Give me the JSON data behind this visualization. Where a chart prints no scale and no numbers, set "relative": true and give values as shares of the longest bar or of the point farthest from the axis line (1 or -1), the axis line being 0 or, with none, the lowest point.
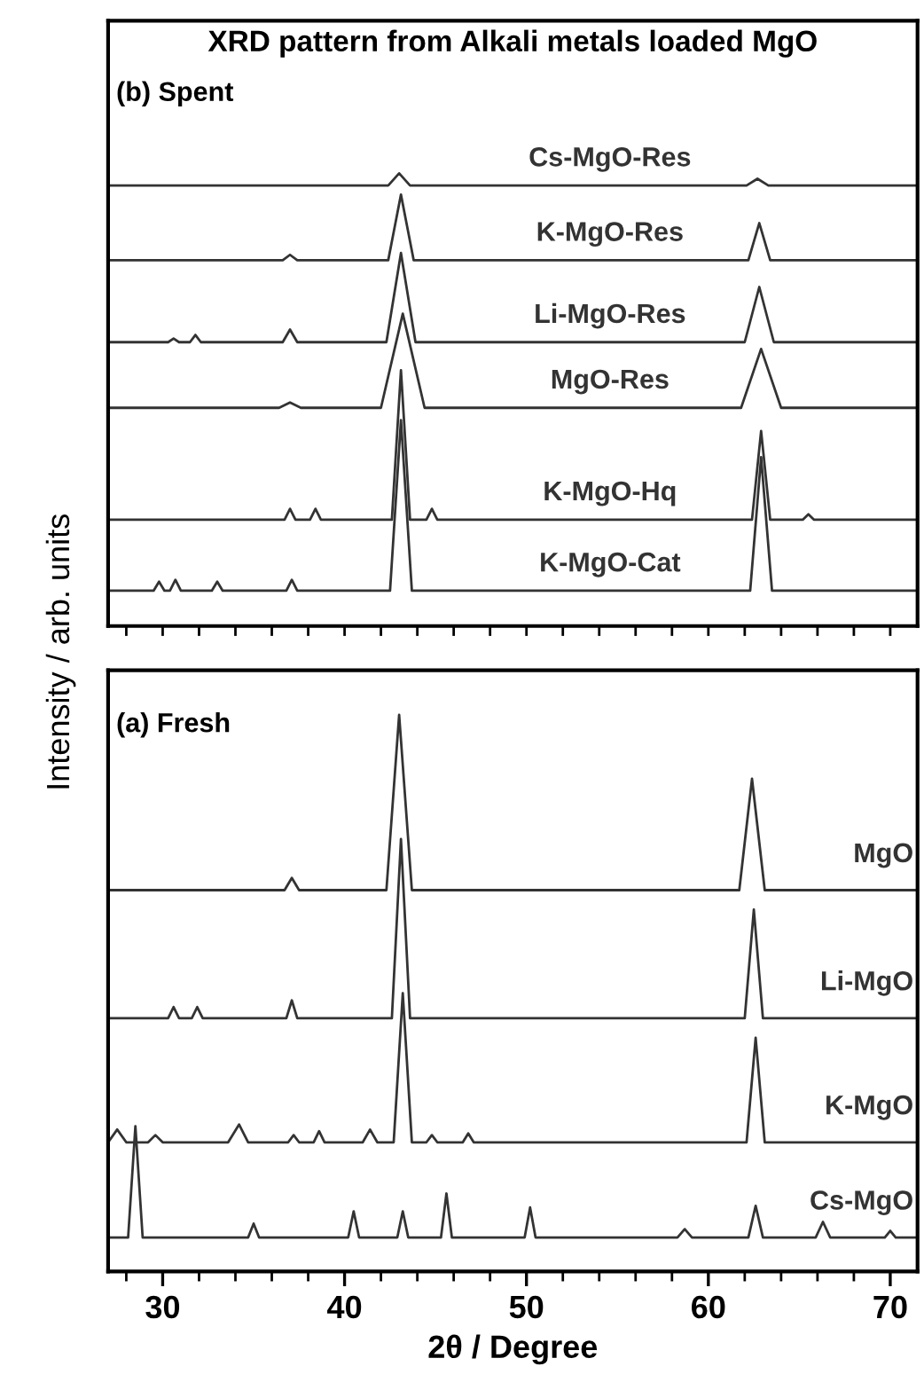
{
  "chart_data": [
    {
      "type": "line",
      "title": "XRD pattern from Alkali metals loaded MgO",
      "annotations": [
        "(b) Spent"
      ],
      "relative": true,
      "xlim": [
        27,
        71.5
      ],
      "xticks": [
        {
          "value": 28,
          "label": null
        },
        {
          "value": 30,
          "label": null
        },
        {
          "value": 32,
          "label": null
        },
        {
          "value": 34,
          "label": null
        },
        {
          "value": 36,
          "label": null
        },
        {
          "value": 38,
          "label": null
        },
        {
          "value": 40,
          "label": null
        },
        {
          "value": 42,
          "label": null
        },
        {
          "value": 44,
          "label": null
        },
        {
          "value": 46,
          "label": null
        },
        {
          "value": 48,
          "label": null
        },
        {
          "value": 50,
          "label": null
        },
        {
          "value": 52,
          "label": null
        },
        {
          "value": 54,
          "label": null
        },
        {
          "value": 56,
          "label": null
        },
        {
          "value": 58,
          "label": null
        },
        {
          "value": 60,
          "label": null
        },
        {
          "value": 62,
          "label": null
        },
        {
          "value": 64,
          "label": null
        },
        {
          "value": 66,
          "label": null
        },
        {
          "value": 68,
          "label": null
        },
        {
          "value": 70,
          "label": null
        }
      ],
      "tick_labels": false,
      "grid": false,
      "legend": false,
      "marker": "none",
      "line_style": "solid",
      "series": [
        {
          "name": "Cs-MgO-Res",
          "color": "#333333",
          "x": [
            27,
            42.4,
            43,
            43.6,
            62.1,
            62.7,
            63.3,
            71.5
          ],
          "values": [
            0.973,
            0.973,
            1.0,
            0.973,
            0.973,
            0.988,
            0.973,
            0.973
          ]
        },
        {
          "name": "K-MgO-Res",
          "color": "#333333",
          "x": [
            27,
            36.6,
            37,
            37.4,
            42.4,
            43.1,
            43.8,
            62.2,
            62.8,
            63.4,
            71.5
          ],
          "values": [
            0.808,
            0.808,
            0.82,
            0.808,
            0.808,
            0.953,
            0.808,
            0.808,
            0.89,
            0.808,
            0.808
          ]
        },
        {
          "name": "Li-MgO-Res",
          "color": "#333333",
          "x": [
            27,
            30.3,
            30.6,
            30.9,
            31.5,
            31.8,
            32.1,
            36.6,
            37,
            37.4,
            42.3,
            43.1,
            43.9,
            62.0,
            62.8,
            63.6,
            71.5
          ],
          "values": [
            0.627,
            0.627,
            0.635,
            0.627,
            0.627,
            0.643,
            0.627,
            0.627,
            0.655,
            0.627,
            0.627,
            0.824,
            0.627,
            0.627,
            0.749,
            0.627,
            0.627
          ]
        },
        {
          "name": "MgO-Res",
          "color": "#333333",
          "x": [
            27,
            36.4,
            37,
            37.6,
            42.0,
            43.2,
            44.4,
            61.8,
            62.9,
            64.0,
            71.5
          ],
          "values": [
            0.482,
            0.482,
            0.494,
            0.482,
            0.482,
            0.69,
            0.482,
            0.482,
            0.612,
            0.482,
            0.482
          ]
        },
        {
          "name": "K-MgO-Hq",
          "color": "#333333",
          "x": [
            27,
            36.7,
            37,
            37.3,
            38.1,
            38.4,
            38.7,
            42.6,
            43.1,
            43.6,
            44.5,
            44.8,
            45.1,
            62.4,
            62.9,
            63.4,
            65.2,
            65.5,
            65.8,
            71.5
          ],
          "values": [
            0.235,
            0.235,
            0.259,
            0.235,
            0.235,
            0.259,
            0.235,
            0.235,
            0.565,
            0.235,
            0.235,
            0.259,
            0.235,
            0.235,
            0.431,
            0.235,
            0.235,
            0.247,
            0.235,
            0.235
          ]
        },
        {
          "name": "K-MgO-Cat",
          "color": "#333333",
          "x": [
            27,
            29.5,
            29.8,
            30.1,
            30.4,
            30.7,
            31.0,
            32.7,
            33.0,
            33.3,
            36.8,
            37.1,
            37.4,
            42.5,
            43.1,
            43.7,
            62.3,
            62.9,
            63.5,
            71.5
          ],
          "values": [
            0.078,
            0.078,
            0.098,
            0.078,
            0.078,
            0.102,
            0.078,
            0.078,
            0.098,
            0.078,
            0.078,
            0.102,
            0.078,
            0.078,
            0.455,
            0.078,
            0.078,
            0.373,
            0.078,
            0.078
          ]
        }
      ]
    },
    {
      "type": "line",
      "annotations": [
        "(a) Fresh"
      ],
      "relative": true,
      "xlabel": "2θ / Degree",
      "ylabel": "Intensity / arb. units",
      "xlim": [
        27,
        71.5
      ],
      "xticks": [
        {
          "value": 28,
          "label": null
        },
        30,
        {
          "value": 32,
          "label": null
        },
        {
          "value": 34,
          "label": null
        },
        {
          "value": 36,
          "label": null
        },
        {
          "value": 38,
          "label": null
        },
        40,
        {
          "value": 42,
          "label": null
        },
        {
          "value": 44,
          "label": null
        },
        {
          "value": 46,
          "label": null
        },
        {
          "value": 48,
          "label": null
        },
        50,
        {
          "value": 52,
          "label": null
        },
        {
          "value": 54,
          "label": null
        },
        {
          "value": 56,
          "label": null
        },
        {
          "value": 58,
          "label": null
        },
        60,
        {
          "value": 62,
          "label": null
        },
        {
          "value": 64,
          "label": null
        },
        {
          "value": 66,
          "label": null
        },
        {
          "value": 68,
          "label": null
        },
        70
      ],
      "tick_labels": "x",
      "grid": false,
      "legend": false,
      "marker": "none",
      "line_style": "solid",
      "series": [
        {
          "name": "MgO",
          "color": "#333333",
          "x": [
            27,
            36.7,
            37.1,
            37.5,
            42.3,
            43.0,
            43.7,
            61.7,
            62.4,
            63.1,
            71.5
          ],
          "values": [
            0.685,
            0.685,
            0.707,
            0.685,
            0.685,
            1.0,
            0.685,
            0.685,
            0.885,
            0.685,
            0.685
          ]
        },
        {
          "name": "Li-MgO",
          "color": "#333333",
          "x": [
            27,
            30.3,
            30.6,
            30.9,
            31.6,
            31.9,
            32.2,
            36.8,
            37.1,
            37.4,
            42.6,
            43.1,
            43.6,
            62.0,
            62.5,
            63.0,
            71.5
          ],
          "values": [
            0.455,
            0.455,
            0.475,
            0.455,
            0.455,
            0.475,
            0.455,
            0.455,
            0.487,
            0.455,
            0.455,
            0.777,
            0.455,
            0.455,
            0.65,
            0.455,
            0.455
          ]
        },
        {
          "name": "K-MgO",
          "color": "#333333",
          "x": [
            27,
            27.5,
            28.0,
            29.2,
            29.6,
            30.0,
            33.6,
            34.2,
            34.7,
            36.9,
            37.2,
            37.5,
            38.3,
            38.6,
            38.9,
            41.0,
            41.4,
            41.8,
            42.7,
            43.2,
            43.7,
            44.5,
            44.8,
            45.1,
            46.5,
            46.8,
            47.1,
            62.1,
            62.6,
            63.1,
            71.5
          ],
          "values": [
            0.232,
            0.255,
            0.232,
            0.232,
            0.245,
            0.232,
            0.232,
            0.264,
            0.232,
            0.232,
            0.245,
            0.232,
            0.232,
            0.252,
            0.232,
            0.232,
            0.255,
            0.232,
            0.232,
            0.5,
            0.232,
            0.232,
            0.245,
            0.232,
            0.232,
            0.248,
            0.232,
            0.232,
            0.42,
            0.232,
            0.232
          ]
        },
        {
          "name": "Cs-MgO",
          "color": "#333333",
          "x": [
            27,
            28.1,
            28.5,
            28.9,
            34.7,
            35.0,
            35.3,
            40.2,
            40.5,
            40.8,
            42.9,
            43.2,
            43.5,
            45.3,
            45.6,
            45.9,
            49.9,
            50.2,
            50.5,
            58.3,
            58.7,
            59.1,
            62.2,
            62.6,
            63.0,
            65.9,
            66.3,
            66.7,
            69.7,
            70.0,
            70.3,
            71.5
          ],
          "values": [
            0.061,
            0.061,
            0.261,
            0.061,
            0.061,
            0.086,
            0.061,
            0.061,
            0.108,
            0.061,
            0.061,
            0.108,
            0.061,
            0.061,
            0.14,
            0.061,
            0.061,
            0.115,
            0.061,
            0.061,
            0.076,
            0.061,
            0.061,
            0.118,
            0.061,
            0.061,
            0.089,
            0.061,
            0.061,
            0.073,
            0.061,
            0.061
          ]
        }
      ]
    }
  ]
}
